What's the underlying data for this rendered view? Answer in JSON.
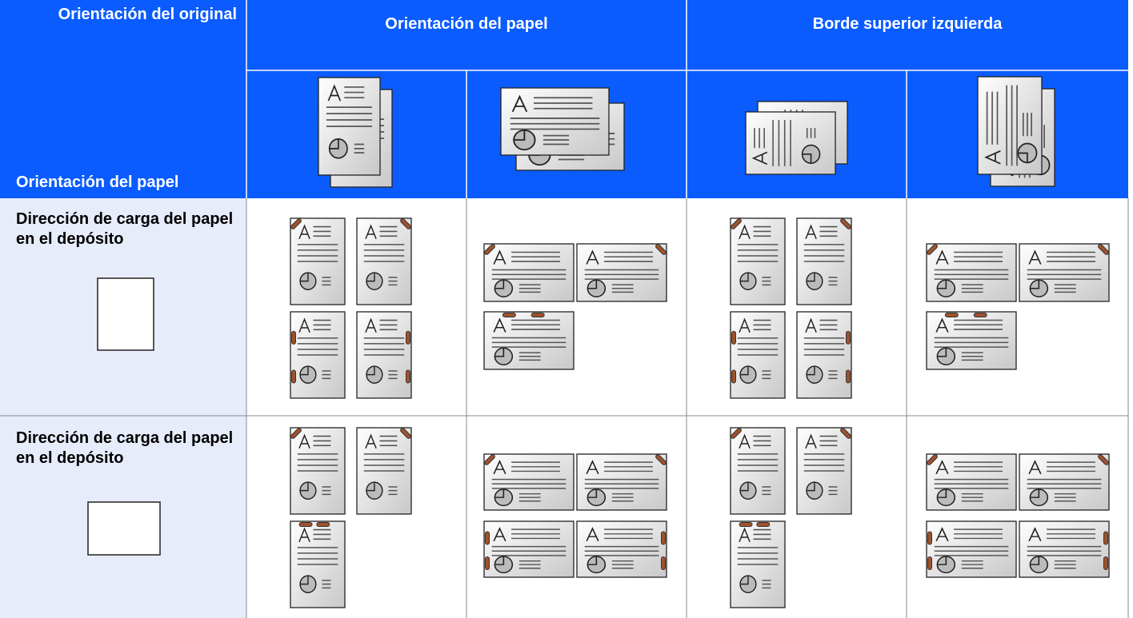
{
  "header": {
    "original_orientation": "Orientación del original",
    "paper_orientation": "Orientación del papel",
    "top_left_edge": "Borde superior izquierda",
    "row_header": "Orientación del papel"
  },
  "rows": [
    {
      "label": "Dirección de carga del papel en el depósito"
    },
    {
      "label": "Dirección de carga del papel en el depósito"
    }
  ]
}
